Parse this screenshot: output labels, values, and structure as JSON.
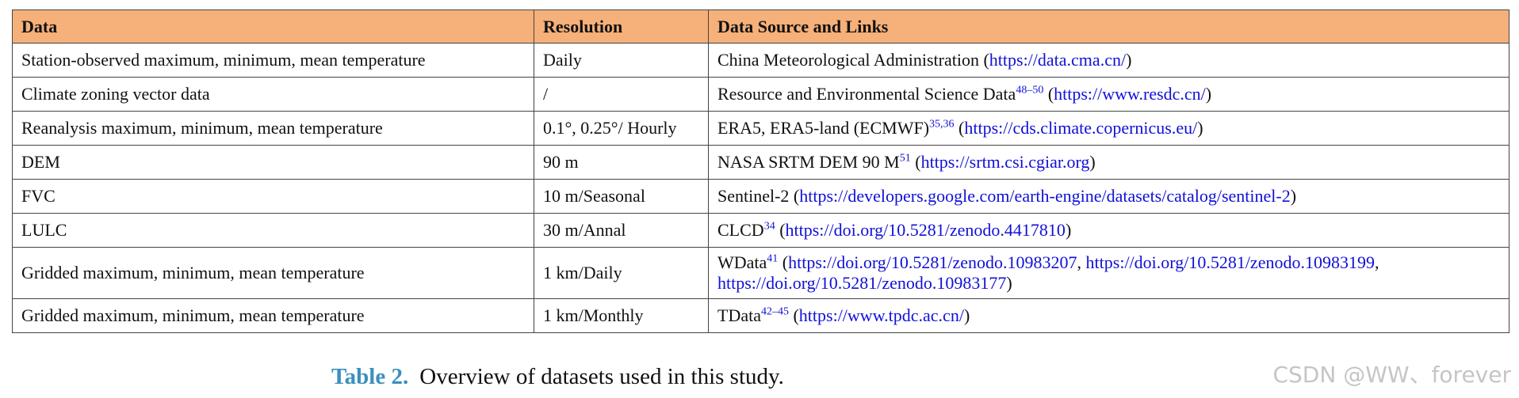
{
  "table": {
    "header": [
      "Data",
      "Resolution",
      "Data Source and Links"
    ],
    "rows": [
      {
        "data": "Station-observed maximum, minimum, mean temperature",
        "resolution": "Daily",
        "source": [
          {
            "text": "China Meteorological Administration ("
          },
          {
            "link": "https://data.cma.cn/"
          },
          {
            "text": ")"
          }
        ]
      },
      {
        "data": "Climate zoning vector data",
        "resolution": "/",
        "source": [
          {
            "text": "Resource and Environmental Science Data"
          },
          {
            "sup": "48–50"
          },
          {
            "text": " ("
          },
          {
            "link": "https://www.resdc.cn/"
          },
          {
            "text": ")"
          }
        ]
      },
      {
        "data": "Reanalysis maximum, minimum, mean temperature",
        "resolution": "0.1°, 0.25°/ Hourly",
        "source": [
          {
            "text": "ERA5, ERA5-land (ECMWF)"
          },
          {
            "sup": "35,36"
          },
          {
            "text": " ("
          },
          {
            "link": "https://cds.climate.copernicus.eu/"
          },
          {
            "text": ")"
          }
        ]
      },
      {
        "data": "DEM",
        "resolution": "90 m",
        "source": [
          {
            "text": "NASA SRTM DEM 90 M"
          },
          {
            "sup": "51"
          },
          {
            "text": " ("
          },
          {
            "link": "https://srtm.csi.cgiar.org"
          },
          {
            "text": ")"
          }
        ]
      },
      {
        "data": "FVC",
        "resolution": "10 m/Seasonal",
        "source": [
          {
            "text": "Sentinel-2 ("
          },
          {
            "link": "https://developers.google.com/earth-engine/datasets/catalog/sentinel-2"
          },
          {
            "text": ")"
          }
        ]
      },
      {
        "data": "LULC",
        "resolution": "30 m/Annal",
        "source": [
          {
            "text": "CLCD"
          },
          {
            "sup": "34"
          },
          {
            "text": " ("
          },
          {
            "link": "https://doi.org/10.5281/zenodo.4417810"
          },
          {
            "text": ")"
          }
        ]
      },
      {
        "data": "Gridded maximum, minimum, mean temperature",
        "resolution": "1 km/Daily",
        "source": [
          {
            "text": "WData"
          },
          {
            "sup": "41"
          },
          {
            "text": " ("
          },
          {
            "link": "https://doi.org/10.5281/zenodo.10983207"
          },
          {
            "text": ", "
          },
          {
            "link": "https://doi.org/10.5281/zenodo.10983199"
          },
          {
            "text": ", "
          },
          {
            "link": "https://doi.org/10.5281/zenodo.10983177"
          },
          {
            "text": ")"
          }
        ]
      },
      {
        "data": "Gridded maximum, minimum, mean temperature",
        "resolution": "1 km/Monthly",
        "source": [
          {
            "text": "TData"
          },
          {
            "sup": "42–45"
          },
          {
            "text": " ("
          },
          {
            "link": "https://www.tpdc.ac.cn/"
          },
          {
            "text": ")"
          }
        ]
      }
    ]
  },
  "caption": {
    "label": "Table 2.",
    "text": "Overview of datasets used in this study."
  },
  "watermark": "CSDN @WW、forever"
}
